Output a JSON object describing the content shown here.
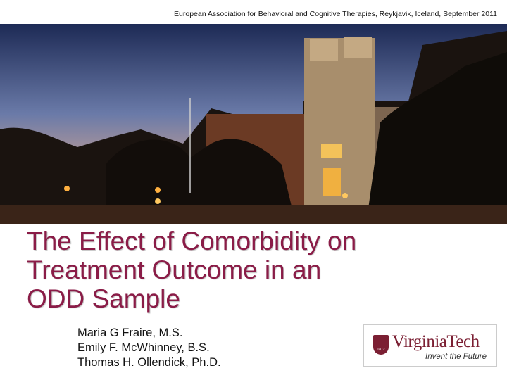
{
  "header": {
    "conference": "European Association for Behavioral and Cognitive Therapies, Reykjavik, Iceland, September 2011"
  },
  "title": {
    "lines": [
      "The Effect of Comorbidity on",
      "Treatment Outcome in an",
      "ODD Sample"
    ]
  },
  "authors": [
    "Maria G Fraire, M.S.",
    "Emily F. McWhinney, B.S.",
    "Thomas H. Ollendick, Ph.D."
  ],
  "logo": {
    "year": "1872",
    "name": "VirginiaTech",
    "tagline": "Invent the Future"
  }
}
